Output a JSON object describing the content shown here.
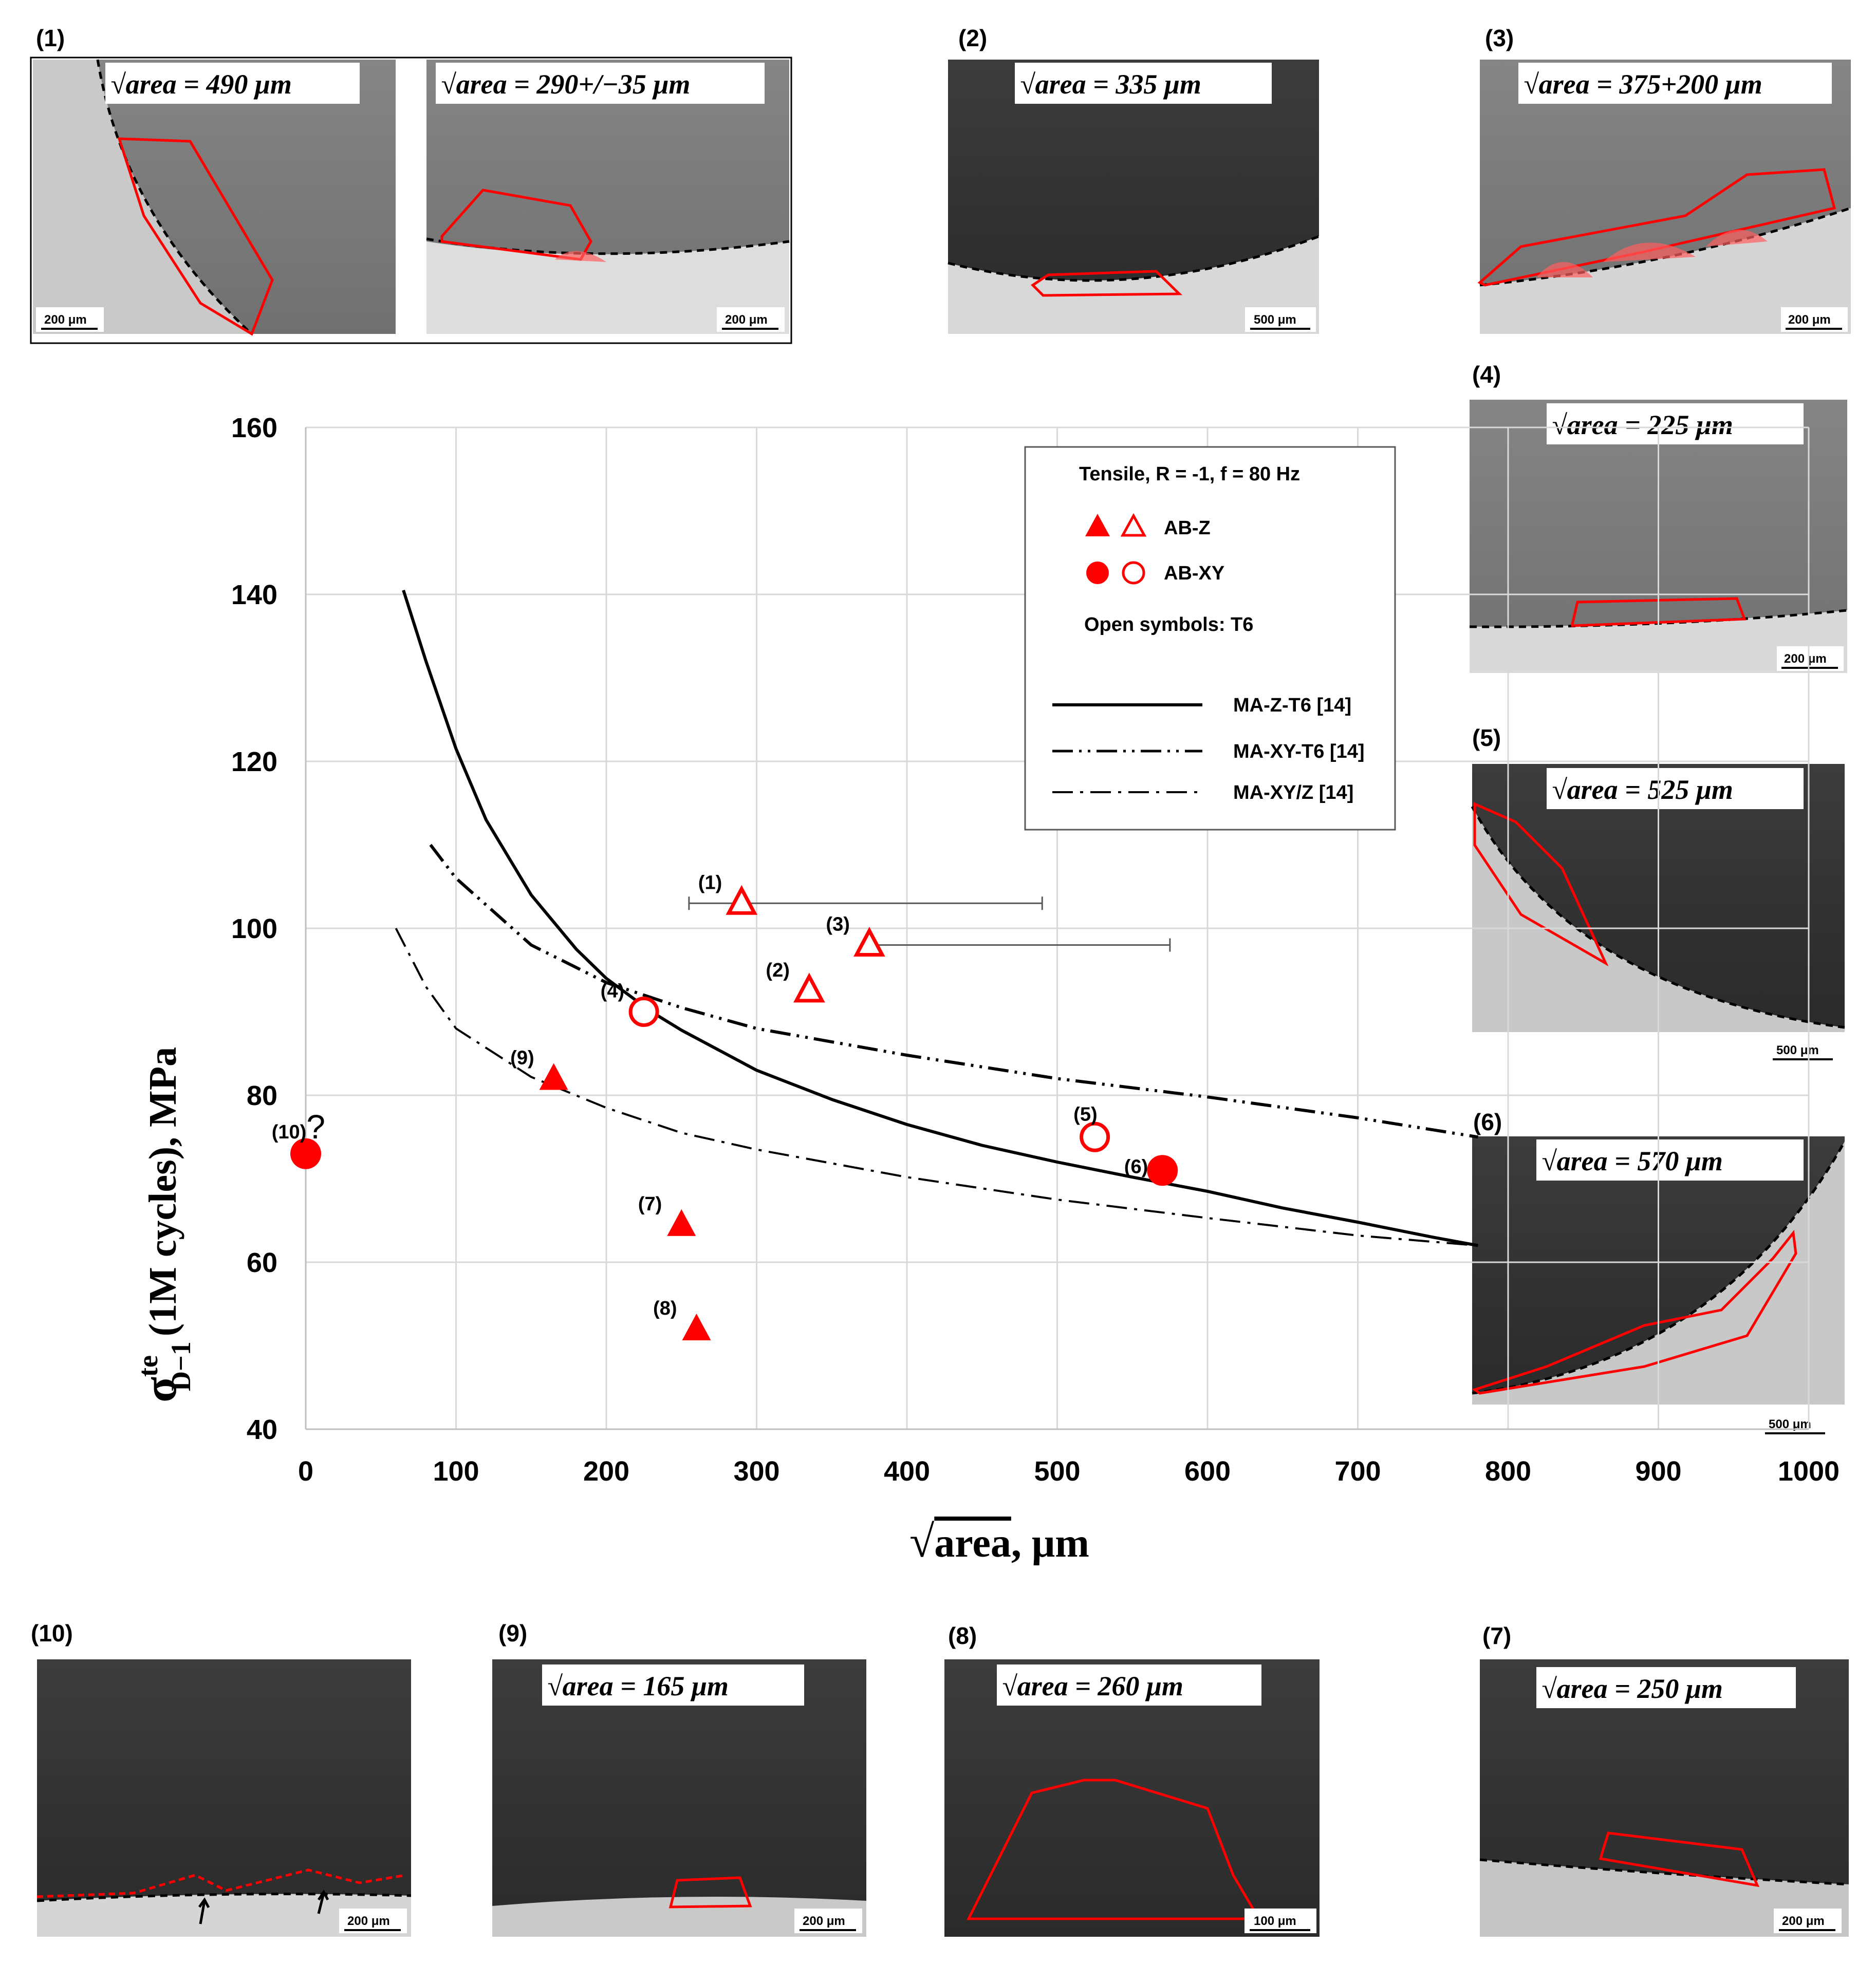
{
  "colors": {
    "marker": "#ff0000",
    "curve": "#000000",
    "grid": "#d9d9d9",
    "errorbar": "#595959",
    "outline": "#ff0000"
  },
  "chart_data": {
    "type": "scatter",
    "title": "",
    "xlabel": "√area, μm",
    "ylabel": "σ te D−1 (1M cycles), MPa",
    "ylabel_parts": {
      "sigma": "σ",
      "sup": "te",
      "sub": "D−1",
      "rest": "(1M cycles), MPa"
    },
    "xlabel_parts": {
      "root": "√",
      "word": "area",
      "rest": ", μm"
    },
    "xlim": [
      0,
      1000
    ],
    "ylim": [
      40,
      160
    ],
    "xticks": [
      0,
      100,
      200,
      300,
      400,
      500,
      600,
      700,
      800,
      900,
      1000
    ],
    "yticks": [
      40,
      60,
      80,
      100,
      120,
      140,
      160
    ],
    "grid": true,
    "legend": {
      "position": "top-right",
      "heading": "Tensile, R = -1, f = 80 Hz",
      "markers": [
        {
          "label": "AB-Z",
          "symbols": [
            "filled-triangle",
            "open-triangle"
          ]
        },
        {
          "label": "AB-XY",
          "symbols": [
            "filled-circle",
            "open-circle"
          ]
        }
      ],
      "note": "Open symbols: T6",
      "lines": [
        {
          "label": "MA-Z-T6 [14]",
          "style": "solid"
        },
        {
          "label": "MA-XY-T6 [14]",
          "style": "dash-dot-dot"
        },
        {
          "label": "MA-XY/Z [14]",
          "style": "dash-dot"
        }
      ]
    },
    "points": [
      {
        "id": "(1)",
        "x": 290,
        "y": 103,
        "marker": "open-triangle",
        "xerr": [
          255,
          490
        ]
      },
      {
        "id": "(2)",
        "x": 335,
        "y": 92.5,
        "marker": "open-triangle"
      },
      {
        "id": "(3)",
        "x": 375,
        "y": 98,
        "marker": "open-triangle",
        "xerr": [
          375,
          575
        ]
      },
      {
        "id": "(4)",
        "x": 225,
        "y": 90,
        "marker": "open-circle"
      },
      {
        "id": "(5)",
        "x": 525,
        "y": 75,
        "marker": "open-circle"
      },
      {
        "id": "(6)",
        "x": 570,
        "y": 71,
        "marker": "filled-circle"
      },
      {
        "id": "(7)",
        "x": 250,
        "y": 64.5,
        "marker": "filled-triangle"
      },
      {
        "id": "(8)",
        "x": 260,
        "y": 52,
        "marker": "filled-triangle"
      },
      {
        "id": "(9)",
        "x": 165,
        "y": 82,
        "marker": "filled-triangle"
      },
      {
        "id": "(10)",
        "x": 0,
        "y": 73,
        "marker": "filled-circle",
        "suffix": "?"
      }
    ],
    "curves": [
      {
        "name": "MA-Z-T6 [14]",
        "style": "solid",
        "x": [
          65,
          80,
          100,
          120,
          150,
          180,
          200,
          230,
          250,
          300,
          350,
          400,
          450,
          500,
          550,
          600,
          650,
          700,
          750,
          780
        ],
        "y": [
          140.5,
          132,
          121.5,
          113,
          104,
          97.5,
          94,
          90,
          87.8,
          83,
          79.5,
          76.5,
          74,
          72,
          70.2,
          68.5,
          66.5,
          64.8,
          63,
          62
        ]
      },
      {
        "name": "MA-XY-T6 [14]",
        "style": "dash-dot-dot",
        "x": [
          83,
          100,
          150,
          200,
          250,
          300,
          400,
          500,
          600,
          700,
          780
        ],
        "y": [
          110,
          106,
          98,
          93.5,
          90.5,
          88,
          84.8,
          82,
          79.8,
          77.3,
          75
        ]
      },
      {
        "name": "MA-XY/Z [14]",
        "style": "dash-dot",
        "x": [
          60,
          80,
          100,
          150,
          200,
          250,
          300,
          400,
          500,
          600,
          700,
          780
        ],
        "y": [
          100,
          93,
          88,
          82.2,
          78.5,
          75.5,
          73.5,
          70.2,
          67.5,
          65.3,
          63.2,
          62
        ]
      }
    ]
  },
  "sem_panels": [
    {
      "id": "(1)",
      "caption": "√area = 490 μm",
      "scale": "200 μm"
    },
    {
      "id": "(1b)",
      "caption": "√area = 290+/−35 μm",
      "scale": "200 μm"
    },
    {
      "id": "(2)",
      "caption": "√area = 335 μm",
      "scale": "500 μm"
    },
    {
      "id": "(3)",
      "caption": "√area = 375+200 μm",
      "scale": "200 μm"
    },
    {
      "id": "(4)",
      "caption": "√area = 225 μm",
      "scale": "200 μm"
    },
    {
      "id": "(5)",
      "caption": "√area = 525 μm",
      "scale": "500 μm"
    },
    {
      "id": "(6)",
      "caption": "√area = 570 μm",
      "scale": "500 μm"
    },
    {
      "id": "(10)",
      "caption": "",
      "scale": "200 μm"
    },
    {
      "id": "(9)",
      "caption": "√area = 165 μm",
      "scale": "200 μm"
    },
    {
      "id": "(8)",
      "caption": "√area = 260 μm",
      "scale": "100 μm"
    },
    {
      "id": "(7)",
      "caption": "√area = 250 μm",
      "scale": "200 μm"
    }
  ]
}
